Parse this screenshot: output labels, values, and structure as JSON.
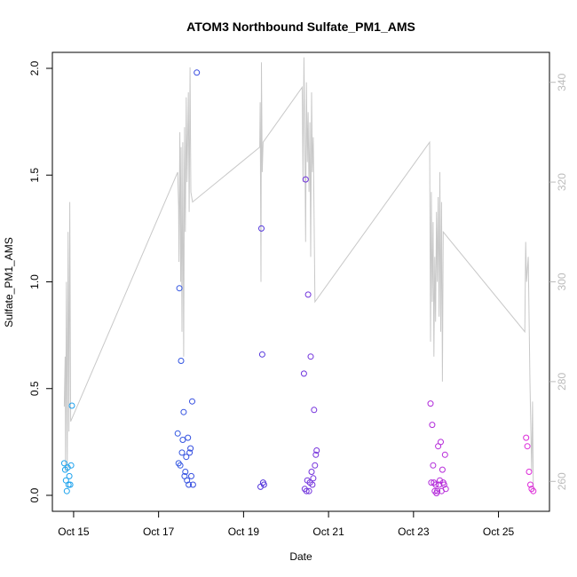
{
  "chart_data": {
    "type": "scatter",
    "title": "ATOM3 Northbound Sulfate_PM1_AMS",
    "xlabel": "Date",
    "ylabel": "Sulfate_PM1_AMS",
    "x_ticks": [
      "Oct 15",
      "Oct 17",
      "Oct 19",
      "Oct 21",
      "Oct 23",
      "Oct 25"
    ],
    "xlim": [
      "Oct 14.5",
      "Oct 26.2"
    ],
    "ylim": [
      0,
      2.0
    ],
    "y_ticks": [
      "0.0",
      "0.5",
      "1.0",
      "1.5",
      "2.0"
    ],
    "y2_ticks": [
      "260",
      "280",
      "300",
      "320",
      "340"
    ],
    "y2lim": [
      254,
      346
    ],
    "grid": false,
    "legend": "none",
    "point_color_scale": [
      "#1aa7ee",
      "#3b3bdd",
      "#9a2bdb",
      "#e02ad9"
    ],
    "line_color": "#c8c8c8",
    "series": [
      {
        "kind": "points",
        "points": [
          [
            14.78,
            0.15
          ],
          [
            14.8,
            0.12
          ],
          [
            14.82,
            0.07
          ],
          [
            14.84,
            0.02
          ],
          [
            14.86,
            0.13
          ],
          [
            14.88,
            0.05
          ],
          [
            14.9,
            0.09
          ],
          [
            14.92,
            0.05
          ],
          [
            14.94,
            0.14
          ],
          [
            14.96,
            0.42
          ],
          [
            17.45,
            0.29
          ],
          [
            17.47,
            0.15
          ],
          [
            17.49,
            0.97
          ],
          [
            17.51,
            0.14
          ],
          [
            17.53,
            0.63
          ],
          [
            17.55,
            0.2
          ],
          [
            17.57,
            0.26
          ],
          [
            17.59,
            0.39
          ],
          [
            17.61,
            0.09
          ],
          [
            17.63,
            0.11
          ],
          [
            17.65,
            0.18
          ],
          [
            17.67,
            0.07
          ],
          [
            17.69,
            0.27
          ],
          [
            17.71,
            0.05
          ],
          [
            17.73,
            0.2
          ],
          [
            17.75,
            0.22
          ],
          [
            17.77,
            0.09
          ],
          [
            17.79,
            0.44
          ],
          [
            17.81,
            0.05
          ],
          [
            17.9,
            1.98
          ],
          [
            19.4,
            0.04
          ],
          [
            19.42,
            1.25
          ],
          [
            19.44,
            0.66
          ],
          [
            19.46,
            0.06
          ],
          [
            19.48,
            0.05
          ],
          [
            20.42,
            0.57
          ],
          [
            20.44,
            0.03
          ],
          [
            20.46,
            1.48
          ],
          [
            20.48,
            0.02
          ],
          [
            20.5,
            0.07
          ],
          [
            20.52,
            0.94
          ],
          [
            20.54,
            0.02
          ],
          [
            20.56,
            0.06
          ],
          [
            20.58,
            0.65
          ],
          [
            20.6,
            0.11
          ],
          [
            20.62,
            0.05
          ],
          [
            20.64,
            0.08
          ],
          [
            20.66,
            0.4
          ],
          [
            20.68,
            0.14
          ],
          [
            20.7,
            0.19
          ],
          [
            20.72,
            0.21
          ],
          [
            23.4,
            0.43
          ],
          [
            23.42,
            0.06
          ],
          [
            23.44,
            0.33
          ],
          [
            23.46,
            0.14
          ],
          [
            23.48,
            0.06
          ],
          [
            23.5,
            0.02
          ],
          [
            23.52,
            0.05
          ],
          [
            23.54,
            0.01
          ],
          [
            23.56,
            0.02
          ],
          [
            23.58,
            0.23
          ],
          [
            23.6,
            0.05
          ],
          [
            23.62,
            0.07
          ],
          [
            23.64,
            0.25
          ],
          [
            23.66,
            0.02
          ],
          [
            23.68,
            0.12
          ],
          [
            23.7,
            0.06
          ],
          [
            23.72,
            0.05
          ],
          [
            23.74,
            0.19
          ],
          [
            23.76,
            0.03
          ],
          [
            25.65,
            0.27
          ],
          [
            25.68,
            0.23
          ],
          [
            25.72,
            0.11
          ],
          [
            25.75,
            0.05
          ],
          [
            25.78,
            0.03
          ],
          [
            25.82,
            0.02
          ]
        ]
      },
      {
        "kind": "line",
        "axis": "right",
        "points": [
          [
            14.78,
            275
          ],
          [
            14.8,
            285
          ],
          [
            14.81,
            262
          ],
          [
            14.83,
            300
          ],
          [
            14.85,
            262
          ],
          [
            14.87,
            310
          ],
          [
            14.89,
            270
          ],
          [
            14.91,
            316
          ],
          [
            14.93,
            272
          ],
          [
            17.45,
            322
          ],
          [
            17.47,
            315
          ],
          [
            17.48,
            304
          ],
          [
            17.5,
            330
          ],
          [
            17.52,
            300
          ],
          [
            17.53,
            327
          ],
          [
            17.55,
            290
          ],
          [
            17.57,
            328
          ],
          [
            17.59,
            285
          ],
          [
            17.61,
            331
          ],
          [
            17.63,
            310
          ],
          [
            17.65,
            337
          ],
          [
            17.67,
            320
          ],
          [
            17.7,
            338
          ],
          [
            17.72,
            314
          ],
          [
            17.74,
            343
          ],
          [
            17.76,
            318
          ],
          [
            17.8,
            316
          ],
          [
            19.38,
            327
          ],
          [
            19.39,
            336
          ],
          [
            19.41,
            300
          ],
          [
            19.42,
            344
          ],
          [
            19.44,
            322
          ],
          [
            19.46,
            328
          ],
          [
            20.38,
            339
          ],
          [
            20.4,
            320
          ],
          [
            20.42,
            345
          ],
          [
            20.44,
            330
          ],
          [
            20.46,
            308
          ],
          [
            20.48,
            340
          ],
          [
            20.5,
            324
          ],
          [
            20.52,
            334
          ],
          [
            20.54,
            318
          ],
          [
            20.56,
            332
          ],
          [
            20.58,
            305
          ],
          [
            20.6,
            338
          ],
          [
            20.62,
            322
          ],
          [
            20.64,
            329
          ],
          [
            20.68,
            296
          ],
          [
            23.38,
            328
          ],
          [
            23.4,
            288
          ],
          [
            23.42,
            318
          ],
          [
            23.44,
            296
          ],
          [
            23.46,
            312
          ],
          [
            23.48,
            285
          ],
          [
            23.5,
            305
          ],
          [
            23.52,
            292
          ],
          [
            23.54,
            314
          ],
          [
            23.56,
            300
          ],
          [
            23.58,
            317
          ],
          [
            23.6,
            293
          ],
          [
            23.62,
            322
          ],
          [
            23.64,
            290
          ],
          [
            23.66,
            316
          ],
          [
            23.68,
            280
          ],
          [
            23.7,
            310
          ],
          [
            25.62,
            290
          ],
          [
            25.64,
            308
          ],
          [
            25.66,
            300
          ],
          [
            25.7,
            305
          ],
          [
            25.74,
            280
          ],
          [
            25.78,
            262
          ],
          [
            25.8,
            276
          ],
          [
            25.82,
            258
          ]
        ]
      }
    ]
  }
}
